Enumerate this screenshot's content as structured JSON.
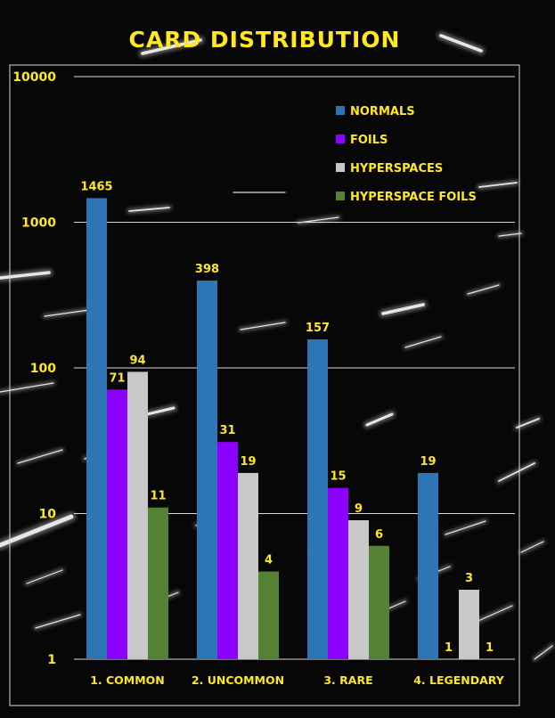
{
  "chart_data": {
    "type": "bar",
    "title": "CARD DISTRIBUTION",
    "xlabel": "",
    "ylabel": "",
    "y_scale": "log",
    "ylim": [
      1,
      10000
    ],
    "y_ticks": [
      "1",
      "10",
      "100",
      "1000",
      "10000"
    ],
    "grid": true,
    "legend_position": "top-right",
    "categories": [
      "1. COMMON",
      "2. UNCOMMON",
      "3. RARE",
      "4. LEGENDARY"
    ],
    "series": [
      {
        "name": "NORMALS",
        "color": "#2e75b6",
        "values": [
          1465,
          398,
          157,
          19
        ]
      },
      {
        "name": "FOILS",
        "color": "#8b00ff",
        "values": [
          71,
          31,
          15,
          1
        ]
      },
      {
        "name": "HYPERSPACES",
        "color": "#c8c8c8",
        "values": [
          94,
          19,
          9,
          3
        ]
      },
      {
        "name": "HYPERSPACE FOILS",
        "color": "#548235",
        "values": [
          11,
          4,
          6,
          1
        ]
      }
    ],
    "label_color": "#ffe81f"
  }
}
